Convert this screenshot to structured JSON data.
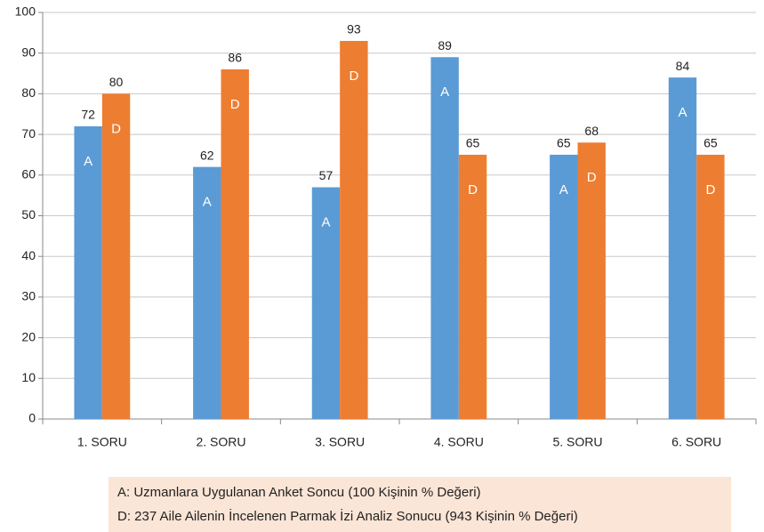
{
  "chart_data": {
    "type": "bar",
    "categories": [
      "1. SORU",
      "2. SORU",
      "3. SORU",
      "4. SORU",
      "5. SORU",
      "6. SORU"
    ],
    "series": [
      {
        "name": "A",
        "color": "#5b9bd5",
        "values": [
          72,
          62,
          57,
          89,
          65,
          84
        ]
      },
      {
        "name": "D",
        "color": "#ed7d31",
        "values": [
          80,
          86,
          93,
          65,
          68,
          65
        ]
      }
    ],
    "ylim": [
      0,
      100
    ],
    "yticks": [
      0,
      10,
      20,
      30,
      40,
      50,
      60,
      70,
      80,
      90,
      100
    ],
    "grid": true,
    "notes": [
      "A: Uzmanlara Uygulanan Anket Soncu (100 Kişinin % Değeri)",
      "D: 237 Aile Ailenin İncelenen Parmak İzi Analiz Sonucu (943 Kişinin % Değeri)"
    ]
  }
}
